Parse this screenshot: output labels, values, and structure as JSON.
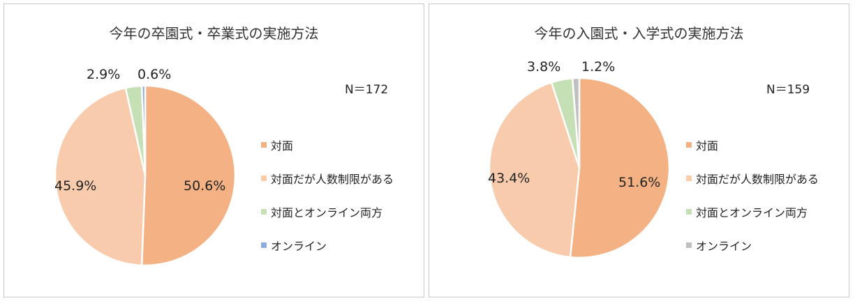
{
  "charts": [
    {
      "title": "今年の卒園式・卒業式の実施方法",
      "n_label": "N＝172",
      "legend": [
        "対面",
        "対面だが人数制限がある",
        "対面とオンライン両方",
        "オンライン"
      ],
      "colors": [
        "#f4b183",
        "#f8cbad",
        "#c5e0b4",
        "#8faadc"
      ],
      "labels": [
        "50.6%",
        "45.9%",
        "2.9%",
        "0.6%"
      ]
    },
    {
      "title": "今年の入園式・入学式の実施方法",
      "n_label": "N＝159",
      "legend": [
        "対面",
        "対面だが人数制限がある",
        "対面とオンライン両方",
        "オンライン"
      ],
      "colors": [
        "#f4b183",
        "#f8cbad",
        "#c5e0b4",
        "#bfbfbf"
      ],
      "labels": [
        "51.6%",
        "43.4%",
        "3.8%",
        "1.2%"
      ]
    }
  ],
  "chart_data": [
    {
      "type": "pie",
      "title": "今年の卒園式・卒業式の実施方法",
      "categories": [
        "対面",
        "対面だが人数制限がある",
        "対面とオンライン両方",
        "オンライン"
      ],
      "values": [
        50.6,
        45.9,
        2.9,
        0.6
      ],
      "annotation": "N＝172",
      "legend_position": "right"
    },
    {
      "type": "pie",
      "title": "今年の入園式・入学式の実施方法",
      "categories": [
        "対面",
        "対面だが人数制限がある",
        "対面とオンライン両方",
        "オンライン"
      ],
      "values": [
        51.6,
        43.4,
        3.8,
        1.2
      ],
      "annotation": "N＝159",
      "legend_position": "right"
    }
  ]
}
